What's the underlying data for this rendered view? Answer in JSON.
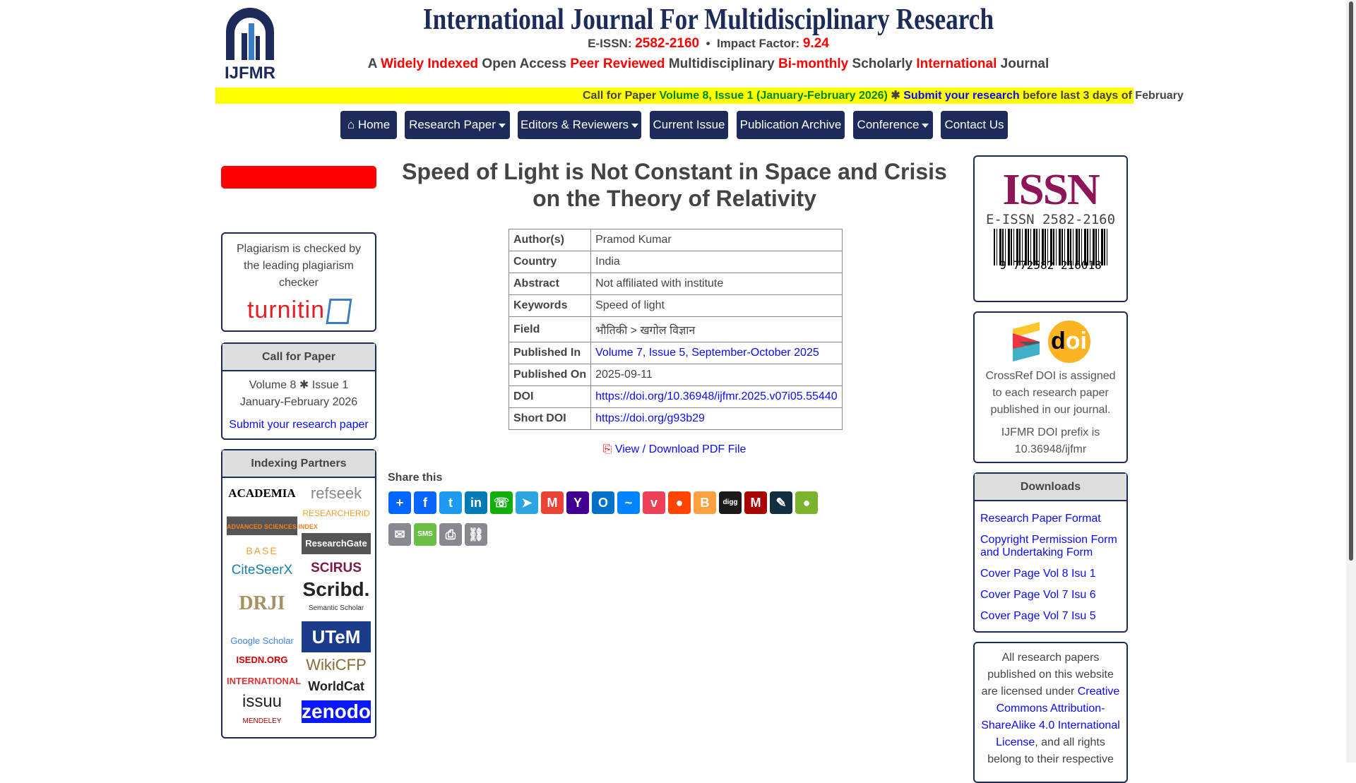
{
  "header": {
    "logo_text": "IJFMR",
    "title": "International Journal For Multidisciplinary Research",
    "eissn_label": "E-ISSN:",
    "eissn": "2582-2160",
    "bullet": "•",
    "impact_label": "Impact Factor:",
    "impact": "9.24",
    "tagline": [
      {
        "t": "A ",
        "red": false
      },
      {
        "t": "Widely Indexed",
        "red": true
      },
      {
        "t": " Open Access ",
        "red": false
      },
      {
        "t": "Peer Reviewed",
        "red": true
      },
      {
        "t": " Multidisciplinary ",
        "red": false
      },
      {
        "t": "Bi-monthly",
        "red": true
      },
      {
        "t": " Scholarly ",
        "red": false
      },
      {
        "t": "International",
        "red": true
      },
      {
        "t": " Journal",
        "red": false
      }
    ]
  },
  "ticker": {
    "prefix": "Call for Paper ",
    "issue": "Volume 8, Issue 1 (January-February 2026)",
    "star": " ✱ ",
    "link": "Submit your research",
    "suffix": " before last 3 days of February"
  },
  "nav": [
    {
      "label": "Home",
      "icon": "home-icon"
    },
    {
      "label": "Research Paper",
      "dropdown": true
    },
    {
      "label": "Editors & Reviewers",
      "dropdown": true
    },
    {
      "label": "Current Issue"
    },
    {
      "label": "Publication Archive"
    },
    {
      "label": "Conference",
      "dropdown": true
    },
    {
      "label": "Contact Us"
    }
  ],
  "left": {
    "plagiarism_text": "Plagiarism is checked by the leading plagiarism checker",
    "turnitin": "turnitin",
    "cfp": {
      "title": "Call for Paper",
      "line1": "Volume 8 ✱ Issue 1",
      "line2": "January-February 2026",
      "link": "Submit your research paper"
    },
    "indexing": {
      "title": "Indexing Partners",
      "col1": [
        "ACADEMIA",
        "ADVANCED SCIENCES INDEX",
        "BASE",
        "CiteSeerX",
        "DRJI",
        "Google Scholar",
        "ISEDN.ORG",
        "INTERNATIONAL",
        "issuu",
        "MENDELEY"
      ],
      "col2": [
        "refseek",
        "RESEARCHERID",
        "ResearchGate",
        "SCIRUS",
        "Scribd.",
        "Semantic Scholar",
        "UTeM",
        "WikiCFP",
        "WorldCat",
        "zenodo"
      ]
    }
  },
  "article": {
    "title": "Speed of Light is Not Constant in Space and Crisis on the Theory of Relativity",
    "rows": [
      {
        "k": "Author(s)",
        "v": "Pramod Kumar"
      },
      {
        "k": "Country",
        "v": "India"
      },
      {
        "k": "Abstract",
        "v": "Not affiliated with institute"
      },
      {
        "k": "Keywords",
        "v": "Speed of light"
      },
      {
        "k": "Field",
        "v": "भौतिकी > खगोल विज्ञान"
      },
      {
        "k": "Published In",
        "v": "Volume 7, Issue 5, September-October 2025",
        "link": true
      },
      {
        "k": "Published On",
        "v": "2025-09-11"
      },
      {
        "k": "DOI",
        "v": "https://doi.org/10.36948/ijfmr.2025.v07i05.55440",
        "link": true
      },
      {
        "k": "Short DOI",
        "v": "https://doi.org/g93b29",
        "link": true
      }
    ],
    "pdf_label": "View / Download PDF File",
    "share_title": "Share this",
    "share": [
      {
        "n": "share",
        "c": "#0166ff",
        "g": "+"
      },
      {
        "n": "facebook",
        "c": "#0866ff",
        "g": "f"
      },
      {
        "n": "twitter",
        "c": "#1d9bf0",
        "g": "t"
      },
      {
        "n": "linkedin",
        "c": "#007bb5",
        "g": "in"
      },
      {
        "n": "whatsapp",
        "c": "#12af0a",
        "g": "☏"
      },
      {
        "n": "telegram",
        "c": "#2ca5e0",
        "g": "➤"
      },
      {
        "n": "gmail",
        "c": "#ea4335",
        "g": "M"
      },
      {
        "n": "yahoo",
        "c": "#400090",
        "g": "Y"
      },
      {
        "n": "outlook",
        "c": "#0072c6",
        "g": "O"
      },
      {
        "n": "messenger",
        "c": "#0084ff",
        "g": "~"
      },
      {
        "n": "pocket",
        "c": "#ee4056",
        "g": "v"
      },
      {
        "n": "reddit",
        "c": "#ff4500",
        "g": "●"
      },
      {
        "n": "blogger",
        "c": "#fda140",
        "g": "B"
      },
      {
        "n": "digg",
        "c": "#1b1a19",
        "g": "digg"
      },
      {
        "n": "mendeley",
        "c": "#a70805",
        "g": "M"
      },
      {
        "n": "livejournal",
        "c": "#113140",
        "g": "✎"
      },
      {
        "n": "wechat",
        "c": "#7bb32e",
        "g": "●"
      },
      {
        "n": "email",
        "c": "#888990",
        "g": "✉"
      },
      {
        "n": "sms",
        "c": "#6cbe45",
        "g": "SMS"
      },
      {
        "n": "print",
        "c": "#888990",
        "g": "⎙"
      },
      {
        "n": "copy-link",
        "c": "#888990",
        "g": "⛓"
      }
    ]
  },
  "right": {
    "issn_box": {
      "logo": "ISSN",
      "label": "E-ISSN 2582-2160",
      "barcode_digits": "9 772582 216018"
    },
    "doi_box": {
      "logo": "doi",
      "text1": "CrossRef DOI is assigned to each research paper published in our journal.",
      "text2": "IJFMR DOI prefix is 10.36948/ijfmr"
    },
    "downloads": {
      "title": "Downloads",
      "items": [
        "Research Paper Format",
        "Copyright Permission Form and Undertaking Form",
        "Cover Page Vol 8 Isu 1",
        "Cover Page Vol 7 Isu 6",
        "Cover Page Vol 7 Isu 5"
      ]
    },
    "license": {
      "pre": "All research papers published on this website are licensed under ",
      "link": "Creative Commons Attribution-ShareAlike 4.0 International License",
      "post": ", and all rights belong to their respective"
    }
  }
}
